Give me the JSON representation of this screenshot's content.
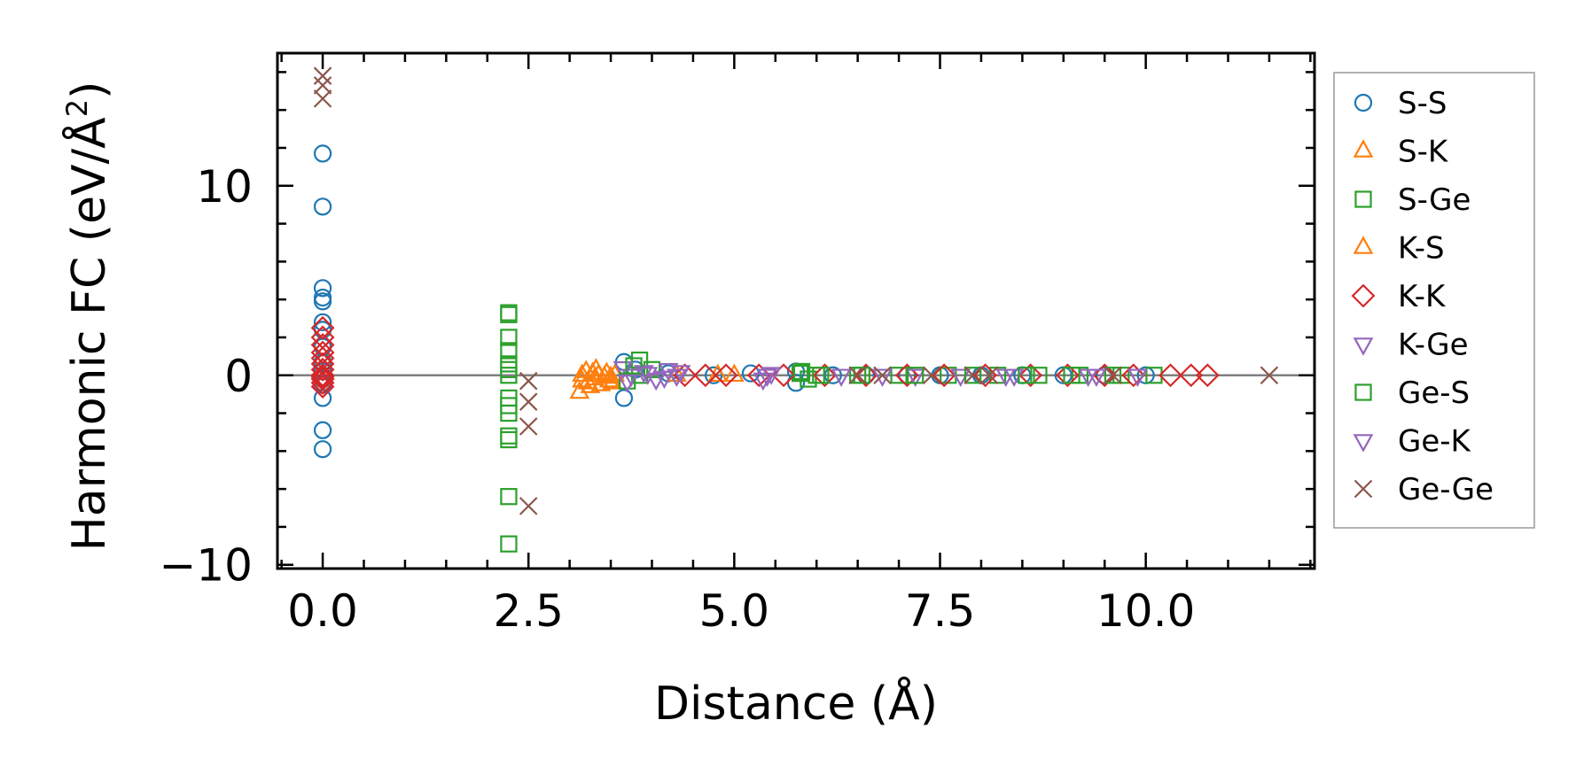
{
  "chart_data": {
    "type": "scatter",
    "title": "",
    "xlabel": "Distance (Å)",
    "ylabel_main": "Harmonic FC (eV/Å",
    "ylabel_sup": "2",
    "ylabel_close": ")",
    "xlim": [
      -0.55,
      12.05
    ],
    "ylim": [
      -10.2,
      17.0
    ],
    "xticks": [
      0.0,
      2.5,
      5.0,
      7.5,
      10.0
    ],
    "xtick_labels": [
      "0.0",
      "2.5",
      "5.0",
      "7.5",
      "10.0"
    ],
    "yticks": [
      -10,
      0,
      10
    ],
    "ytick_labels": [
      "−10",
      "0",
      "10"
    ],
    "zero_line": 0,
    "legend_position": "outside-right",
    "series": [
      {
        "name": "S-S",
        "marker": "circle",
        "color": "#1f77b4",
        "x": [
          0.0,
          0.0,
          0.0,
          0.0,
          0.0,
          0.0,
          0.0,
          0.0,
          0.0,
          0.0,
          0.0,
          0.0,
          0.0,
          0.0,
          0.0,
          3.66,
          3.66,
          3.8,
          4.2,
          4.75,
          5.2,
          5.75,
          5.75,
          6.2,
          6.6,
          7.1,
          7.5,
          8.0,
          8.5,
          9.0,
          9.5,
          10.0
        ],
        "y": [
          11.7,
          8.9,
          4.6,
          4.1,
          3.9,
          2.8,
          2.4,
          1.5,
          0.7,
          0.2,
          -0.2,
          -0.5,
          -1.2,
          -2.9,
          -3.9,
          0.7,
          -1.2,
          0.3,
          0.1,
          0.0,
          0.1,
          -0.4,
          0.2,
          0.0,
          0.0,
          0.0,
          0.0,
          0.0,
          0.0,
          0.0,
          0.0,
          0.0
        ]
      },
      {
        "name": "S-K",
        "marker": "triangle-up",
        "color": "#ff7f0e",
        "x": [
          3.12,
          3.15,
          3.2,
          3.22,
          3.28,
          3.3,
          3.35,
          3.38,
          3.45,
          3.5,
          3.52,
          4.3,
          4.8,
          5.0
        ],
        "y": [
          -0.9,
          -0.3,
          0.2,
          -0.4,
          0.1,
          -0.2,
          0.0,
          -0.5,
          0.1,
          -0.1,
          -0.4,
          0.0,
          0.0,
          0.0
        ]
      },
      {
        "name": "S-Ge",
        "marker": "square",
        "color": "#2ca02c",
        "x": [
          2.26,
          2.26,
          2.26,
          2.26,
          2.26,
          2.26,
          2.26,
          2.26,
          2.26,
          2.26,
          2.26,
          2.26,
          2.26,
          2.26,
          3.85,
          3.85,
          4.0,
          5.8,
          5.9,
          6.0,
          6.5,
          7.0,
          7.6,
          8.2,
          8.7,
          9.2,
          9.7,
          10.1
        ],
        "y": [
          3.3,
          3.2,
          2.0,
          1.3,
          0.6,
          0.3,
          0.0,
          -1.2,
          -1.6,
          -2.0,
          -3.2,
          -3.4,
          -6.4,
          -8.9,
          0.8,
          0.0,
          0.3,
          0.1,
          -0.2,
          0.0,
          0.0,
          0.0,
          0.0,
          0.0,
          0.0,
          0.0,
          0.0,
          0.0
        ]
      },
      {
        "name": "K-S",
        "marker": "triangle-up",
        "color": "#ff7f0e",
        "x": [
          3.15,
          3.25,
          3.32,
          3.42,
          3.48,
          3.55
        ],
        "y": [
          0.0,
          -0.6,
          0.3,
          -0.1,
          -0.3,
          0.0
        ]
      },
      {
        "name": "K-K",
        "marker": "diamond",
        "color": "#d62728",
        "x": [
          0.0,
          0.0,
          0.0,
          0.0,
          0.0,
          0.0,
          0.0,
          0.0,
          0.0,
          0.0,
          0.0,
          0.0,
          4.4,
          4.65,
          4.9,
          5.3,
          5.6,
          6.1,
          6.6,
          7.1,
          7.55,
          8.05,
          8.6,
          9.05,
          9.5,
          9.85,
          10.3,
          10.55,
          10.75
        ],
        "y": [
          2.5,
          2.0,
          1.6,
          1.2,
          0.9,
          0.6,
          0.3,
          0.0,
          -0.2,
          -0.4,
          -0.6,
          -0.1,
          0.0,
          0.0,
          0.0,
          0.0,
          0.0,
          0.0,
          0.0,
          0.0,
          0.0,
          0.0,
          0.0,
          0.0,
          0.0,
          0.0,
          0.0,
          0.0,
          0.0
        ]
      },
      {
        "name": "K-Ge",
        "marker": "triangle-down",
        "color": "#9467bd",
        "x": [
          3.65,
          3.75,
          3.9,
          4.05,
          4.2,
          4.3,
          5.35,
          5.45,
          6.3,
          7.2,
          7.75,
          8.4,
          9.3,
          9.9
        ],
        "y": [
          0.4,
          0.0,
          0.2,
          -0.2,
          0.3,
          0.0,
          -0.2,
          0.1,
          0.0,
          0.0,
          0.0,
          0.0,
          0.0,
          0.0
        ]
      },
      {
        "name": "Ge-S",
        "marker": "square",
        "color": "#2ca02c",
        "x": [
          3.7,
          3.78,
          5.82,
          6.05,
          6.55,
          7.2,
          7.9,
          8.55,
          9.1,
          9.6
        ],
        "y": [
          -0.3,
          0.5,
          0.2,
          0.0,
          0.0,
          0.0,
          0.0,
          0.0,
          0.0,
          0.0
        ]
      },
      {
        "name": "Ge-K",
        "marker": "triangle-down",
        "color": "#9467bd",
        "x": [
          3.7,
          3.95,
          4.15,
          4.35,
          5.4,
          6.8,
          8.3,
          9.4
        ],
        "y": [
          -0.3,
          0.1,
          -0.1,
          0.2,
          0.0,
          0.0,
          0.0,
          0.0
        ]
      },
      {
        "name": "Ge-Ge",
        "marker": "x",
        "color": "#8c564b",
        "x": [
          0.0,
          0.0,
          0.0,
          2.5,
          2.5,
          2.5,
          2.5,
          6.5,
          6.8,
          7.4,
          7.9,
          8.1,
          9.6,
          11.5
        ],
        "y": [
          15.8,
          15.3,
          14.6,
          -0.3,
          -1.4,
          -2.7,
          -6.9,
          0.0,
          0.0,
          0.0,
          0.0,
          0.0,
          0.0,
          0.0
        ]
      }
    ]
  }
}
